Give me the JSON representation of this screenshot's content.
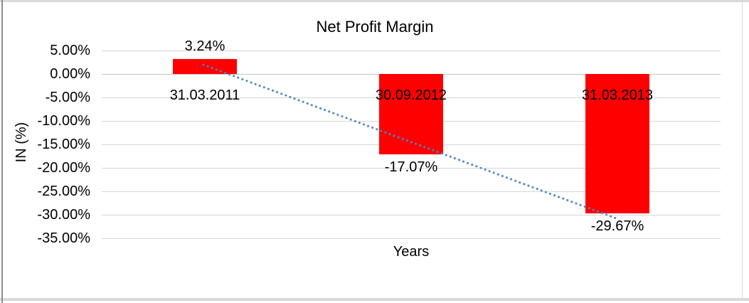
{
  "frame": {
    "background": "#ffffff",
    "border_color": "#d9d9d9",
    "left_edge_color": "#8c8c8c"
  },
  "chart_data": {
    "type": "bar",
    "title": "Net Profit Margin",
    "xlabel": "Years",
    "ylabel": "IN (%)",
    "categories": [
      "31.03.2011",
      "30.09.2012",
      "31.03.2013"
    ],
    "values": [
      3.24,
      -17.07,
      -29.67
    ],
    "data_labels": [
      "3.24%",
      "-17.07%",
      "-29.67%"
    ],
    "y_ticks": [
      "5.00%",
      "0.00%",
      "-5.00%",
      "-10.00%",
      "-15.00%",
      "-20.00%",
      "-25.00%",
      "-30.00%",
      "-35.00%"
    ],
    "ylim": [
      -35,
      5
    ],
    "grid": true,
    "legend": "none",
    "bar_color": "#FF0000",
    "text_color": "#000000",
    "gridline_color": "#d6d6d6",
    "zero_line_color": "#c4c4c4",
    "trendline": {
      "type": "linear",
      "style": "dotted",
      "color": "#4A86C6",
      "start_value": 1.96,
      "end_value": -30.96
    }
  }
}
